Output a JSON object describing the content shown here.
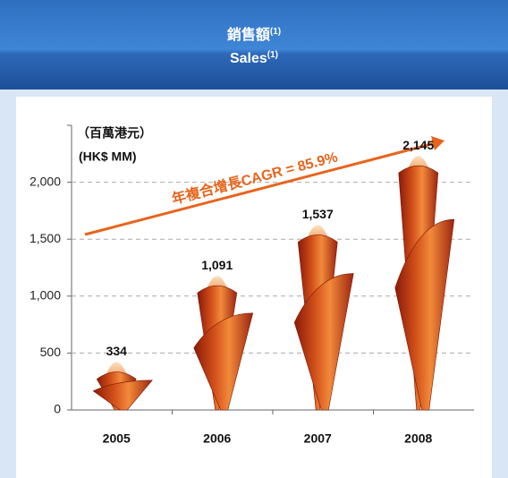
{
  "header": {
    "title": "銷售額",
    "title_sup": "(1)",
    "subtitle": "Sales",
    "subtitle_sup": "(1)"
  },
  "chart_data": {
    "type": "bar",
    "y_label_zh": "（百萬港元）",
    "y_label": "(HK$ MM)",
    "annotation": "年複合增長CAGR = 85.9%",
    "categories": [
      "2005",
      "2006",
      "2007",
      "2008"
    ],
    "values": [
      334,
      1091,
      1537,
      2145
    ],
    "value_labels": [
      "334",
      "1,091",
      "1,537",
      "2,145"
    ],
    "ylim": [
      0,
      2500
    ],
    "yticks": [
      0,
      {
        "value": 500,
        "label": "500"
      },
      {
        "value": 1000,
        "label": "1,000"
      },
      {
        "value": 1500,
        "label": "1,500"
      },
      {
        "value": 2000,
        "label": "2,000"
      }
    ],
    "grid": true,
    "color": "#e2601c"
  }
}
